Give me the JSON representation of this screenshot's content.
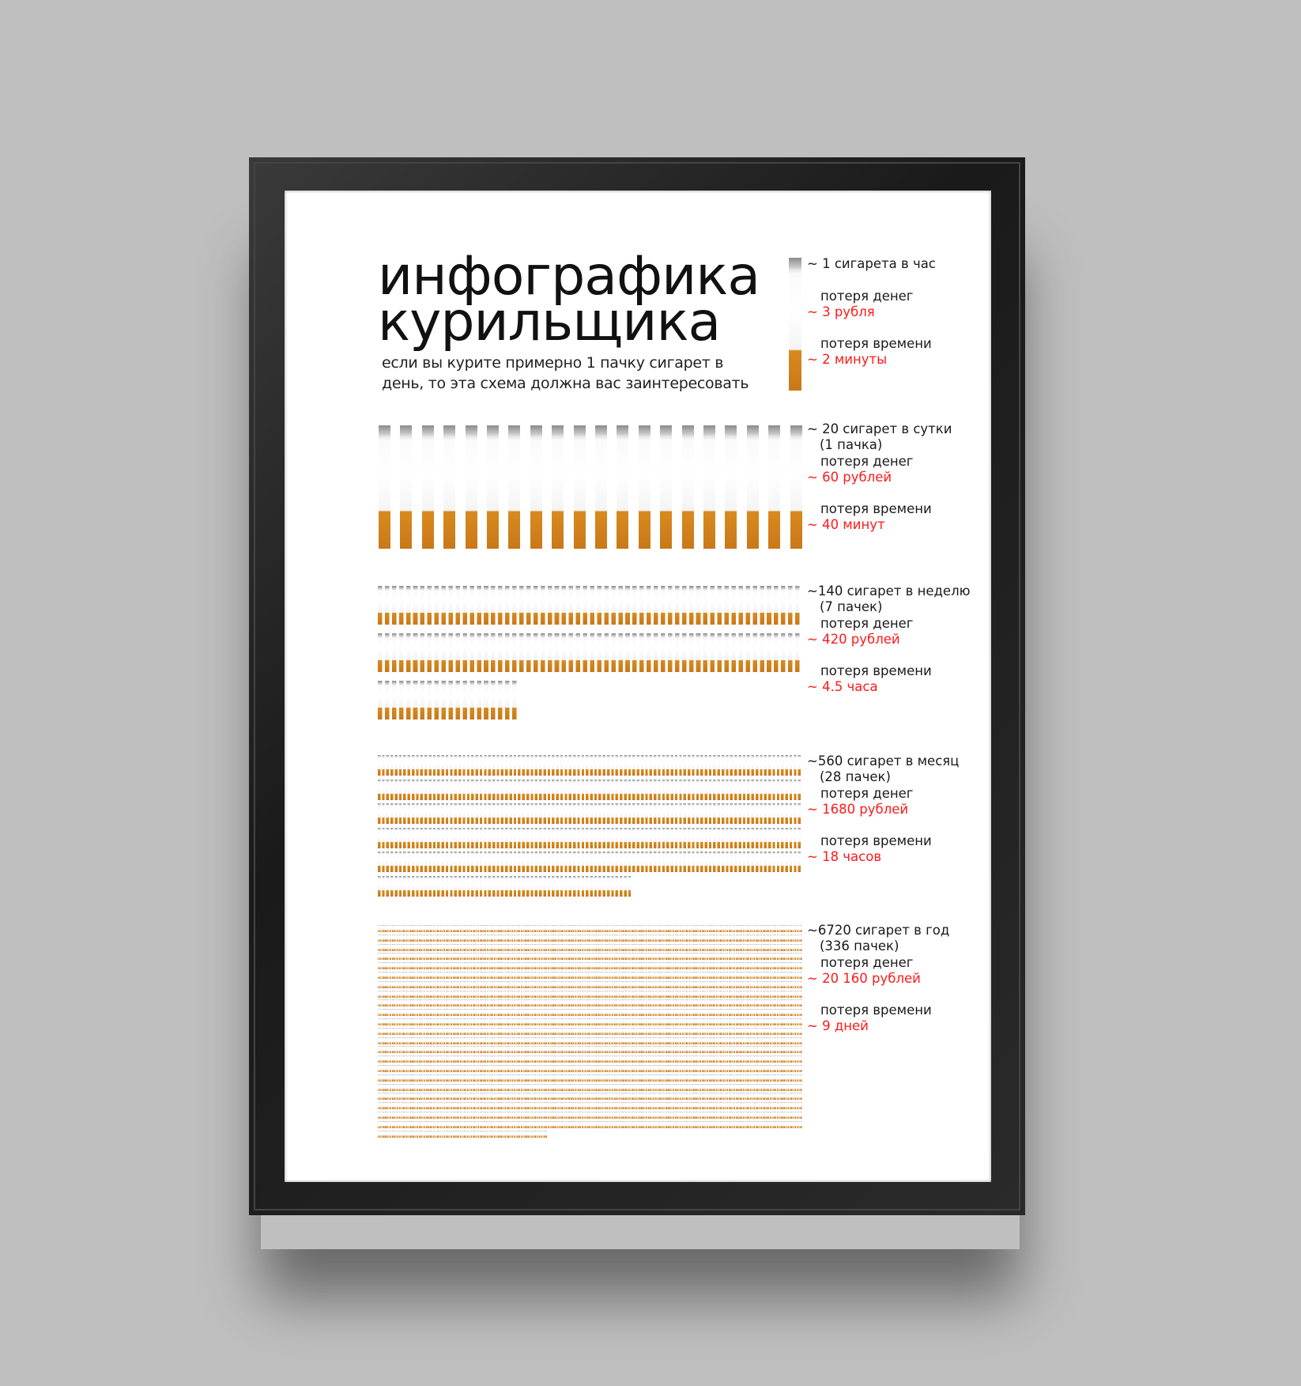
{
  "title": {
    "line1": "инфографика",
    "line2": "курильщика"
  },
  "subtitle": {
    "line1": "если вы курите примерно 1 пачку сигарет в",
    "line2": "день, то эта схема должна вас заинтересовать"
  },
  "colors": {
    "accent_red": "#ff1a1a",
    "filter_orange": "#d88a1e",
    "background": "#bfbfbf",
    "frame": "#1e1e1e"
  },
  "sections": [
    {
      "count_text": "~ 1 сигарета в час",
      "packs_text": "",
      "money_label": "потеря денег",
      "money_value": "~ 3 рубля",
      "time_label": "потеря времени",
      "time_value": "~ 2 минуты",
      "cigarettes": 1
    },
    {
      "count_text": "~ 20 сигарет в сутки",
      "packs_text": "(1 пачка)",
      "money_label": "потеря денег",
      "money_value": "~ 60 рублей",
      "time_label": "потеря времени",
      "time_value": "~ 40 минут",
      "cigarettes": 20
    },
    {
      "count_text": "~140 сигарет в неделю",
      "packs_text": "(7 пачек)",
      "money_label": "потеря денег",
      "money_value": "~ 420 рублей",
      "time_label": "потеря времени",
      "time_value": "~ 4.5 часа",
      "cigarettes": 140
    },
    {
      "count_text": "~560 сигарет в месяц",
      "packs_text": "(28 пачек)",
      "money_label": "потеря денег",
      "money_value": "~ 1680 рублей",
      "time_label": "потеря времени",
      "time_value": "~ 18 часов",
      "cigarettes": 560
    },
    {
      "count_text": "~6720 сигарет в год",
      "packs_text": "(336 пачек)",
      "money_label": "потеря денег",
      "money_value": "~ 20 160 рублей",
      "time_label": "потеря времени",
      "time_value": "~ 9 дней",
      "cigarettes": 6720
    }
  ]
}
